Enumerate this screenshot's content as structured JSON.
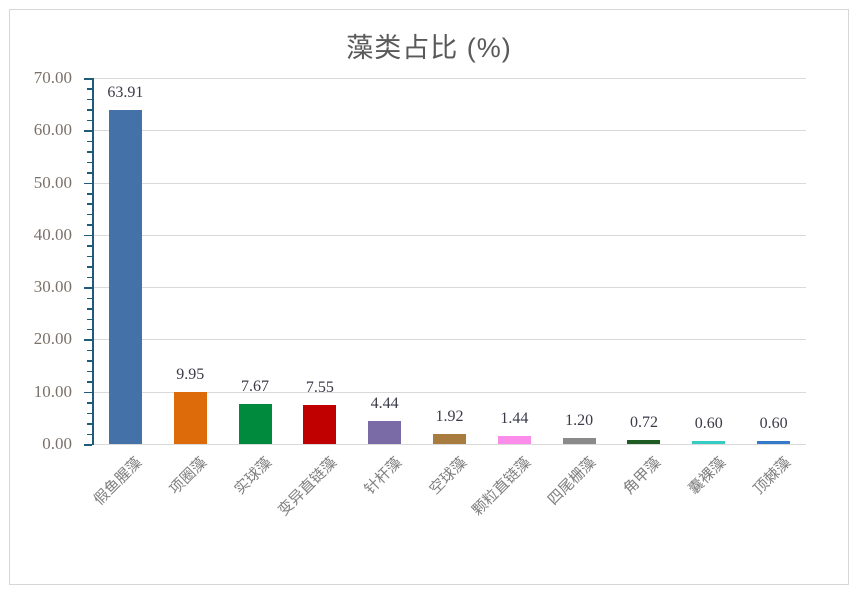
{
  "window": {
    "background": "#ffffff",
    "frame_border_color": "#d6d6d6"
  },
  "chart_data": {
    "type": "bar",
    "title": "藻类占比 (%)",
    "xlabel": "",
    "ylabel": "",
    "legend": "none",
    "grid": true,
    "categories": [
      "假鱼腥藻",
      "项圈藻",
      "实球藻",
      "变异直链藻",
      "针杆藻",
      "空球藻",
      "颗粒直链藻",
      "四尾栅藻",
      "角甲藻",
      "囊裸藻",
      "顶棘藻"
    ],
    "values": [
      63.91,
      9.95,
      7.67,
      7.55,
      4.44,
      1.92,
      1.44,
      1.2,
      0.72,
      0.6,
      0.6
    ],
    "value_labels": [
      "63.91",
      "9.95",
      "7.67",
      "7.55",
      "4.44",
      "1.92",
      "1.44",
      "1.20",
      "0.72",
      "0.60",
      "0.60"
    ],
    "bar_colors": [
      "#4472a8",
      "#dd6b0a",
      "#008a3e",
      "#c00000",
      "#7a6aa5",
      "#a87b3e",
      "#fb8ce9",
      "#8a8a8a",
      "#1f5c24",
      "#36cbc3",
      "#3579cb"
    ],
    "ylim": [
      0,
      70
    ],
    "y_tick_step": 10,
    "y_minor_tick_step": 2,
    "y_tick_labels": [
      "0.00",
      "10.00",
      "20.00",
      "30.00",
      "40.00",
      "50.00",
      "60.00",
      "70.00"
    ],
    "colors": {
      "title": "#595959",
      "axis_line": "#1e5c78",
      "gridline": "#d9d9d9",
      "value_label": "#3a3a48",
      "y_tick_label": "#7b7168",
      "category_label": "#7f7f7f"
    }
  }
}
